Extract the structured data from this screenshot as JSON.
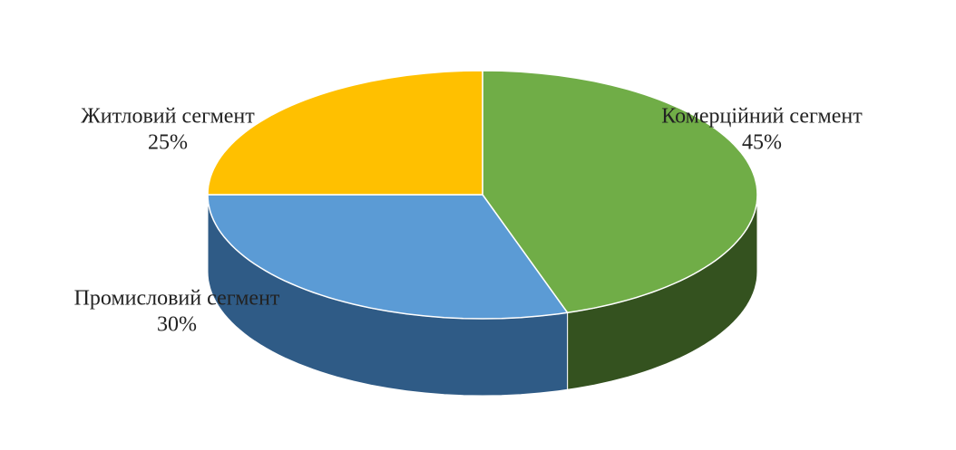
{
  "chart_data": {
    "type": "pie3d",
    "categories": [
      "Комерційний сегмент",
      "Промисловий сегмент",
      "Житловий сегмент"
    ],
    "values": [
      45,
      30,
      25
    ],
    "value_labels": [
      "45%",
      "30%",
      "25%"
    ],
    "colors": [
      "#70ad47",
      "#5b9bd5",
      "#ffc000"
    ],
    "side_colors": [
      "#34521f",
      "#2f5b86",
      "#a07800"
    ]
  }
}
